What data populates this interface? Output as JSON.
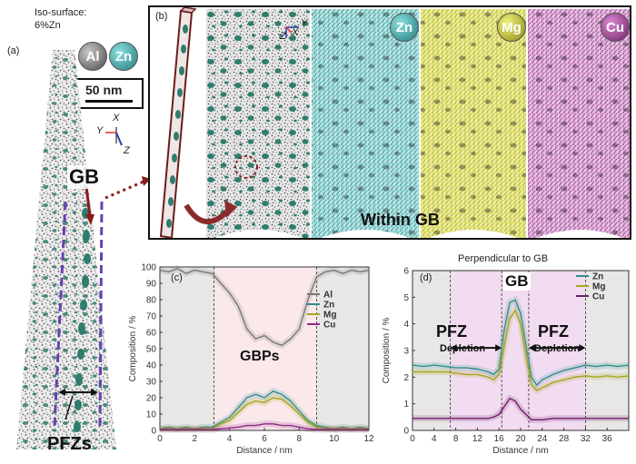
{
  "panel_a": {
    "label": "(a)",
    "iso_line1": "Iso-surface:",
    "iso_line2": "6%Zn",
    "element_badges": [
      "Al",
      "Zn"
    ],
    "scale_bar": "50 nm",
    "axes": {
      "x": "X",
      "y": "Y",
      "z": "Z"
    },
    "gb_label": "GB",
    "pfz_label": "PFZs"
  },
  "panel_b": {
    "label": "(b)",
    "axes": {
      "x": "X",
      "y": "Y",
      "z": "Z"
    },
    "element_badges": [
      "Zn",
      "Mg",
      "Cu"
    ],
    "within_label": "Within GB",
    "colors": {
      "atoms_all": "#404040",
      "zn": "#3aa6a6",
      "mg": "#b9b92a",
      "cu": "#a23b95",
      "precipitate": "#2e7d6e"
    }
  },
  "panel_c": {
    "label": "(c)",
    "annotation": "GBPs"
  },
  "panel_d": {
    "label": "(d)",
    "title": "Perpendicular to GB",
    "gb_label": "GB",
    "pfz_label": "PFZ",
    "depletion_label": "Depletion"
  },
  "chart_data": [
    {
      "type": "line",
      "title": "",
      "xlabel": "Distance / nm",
      "ylabel": "Composition / %",
      "xlim": [
        0,
        12
      ],
      "ylim": [
        0,
        100
      ],
      "xticks": [
        0,
        2,
        4,
        6,
        8,
        10,
        12
      ],
      "yticks": [
        0,
        10,
        20,
        30,
        40,
        50,
        60,
        70,
        80,
        90,
        100
      ],
      "legend_position": "right",
      "shaded_regions": [
        [
          0,
          3.1
        ],
        [
          9.0,
          12
        ]
      ],
      "gb_region": [
        3.1,
        9.0
      ],
      "x": [
        0,
        0.5,
        1,
        1.5,
        2,
        2.5,
        3,
        3.5,
        4,
        4.5,
        5,
        5.5,
        6,
        6.5,
        7,
        7.5,
        8,
        8.5,
        9,
        9.5,
        10,
        10.5,
        11,
        11.5,
        12
      ],
      "series": [
        {
          "name": "Al",
          "color": "#777777",
          "values": [
            98,
            97,
            99,
            96,
            98,
            97,
            96,
            90,
            84,
            76,
            62,
            56,
            58,
            54,
            52,
            56,
            62,
            80,
            94,
            97,
            98,
            96,
            98,
            97,
            98
          ]
        },
        {
          "name": "Zn",
          "color": "#2f8f8f",
          "values": [
            1,
            2,
            1,
            2,
            1,
            2,
            2,
            5,
            8,
            14,
            20,
            22,
            20,
            24,
            22,
            18,
            12,
            6,
            3,
            2,
            1,
            2,
            1,
            2,
            1
          ]
        },
        {
          "name": "Mg",
          "color": "#a5a51e",
          "values": [
            1,
            1,
            1,
            1,
            1,
            1,
            1,
            4,
            6,
            11,
            16,
            18,
            17,
            20,
            19,
            15,
            10,
            5,
            2,
            1,
            1,
            1,
            1,
            1,
            1
          ]
        },
        {
          "name": "Cu",
          "color": "#8e2a86",
          "values": [
            0.5,
            0.5,
            0.5,
            0.5,
            0.5,
            0.5,
            0.5,
            1,
            1.5,
            2,
            3,
            3,
            4,
            4,
            3,
            3,
            2,
            1,
            0.5,
            0.5,
            0.5,
            0.5,
            0.5,
            0.5,
            0.5
          ]
        }
      ]
    },
    {
      "type": "line",
      "title": "Perpendicular to GB",
      "xlabel": "Distance / nm",
      "ylabel": "Composition / %",
      "xlim": [
        0,
        40
      ],
      "ylim": [
        0,
        6
      ],
      "xticks": [
        0,
        4,
        8,
        12,
        16,
        20,
        24,
        28,
        32,
        36
      ],
      "yticks": [
        0,
        1,
        2,
        3,
        4,
        5,
        6
      ],
      "legend_position": "top-right",
      "shaded_regions": [
        [
          0,
          7
        ],
        [
          32,
          40
        ]
      ],
      "pfz_regions": [
        [
          7,
          16.5
        ],
        [
          21.5,
          32
        ]
      ],
      "gb_region": [
        16.5,
        21.5
      ],
      "x": [
        0,
        2,
        4,
        6,
        8,
        10,
        12,
        14,
        15,
        16,
        17,
        18,
        19,
        20,
        21,
        22,
        23,
        24,
        26,
        28,
        30,
        32,
        34,
        36,
        38,
        40
      ],
      "series": [
        {
          "name": "Zn",
          "color": "#2f8f8f",
          "values": [
            2.45,
            2.4,
            2.45,
            2.4,
            2.35,
            2.35,
            2.3,
            2.2,
            2.1,
            2.3,
            3.8,
            4.8,
            4.9,
            4.4,
            3.2,
            2.0,
            1.7,
            1.9,
            2.1,
            2.25,
            2.35,
            2.45,
            2.4,
            2.45,
            2.4,
            2.45
          ]
        },
        {
          "name": "Mg",
          "color": "#a5a51e",
          "values": [
            2.2,
            2.2,
            2.2,
            2.2,
            2.15,
            2.1,
            2.1,
            2.0,
            1.9,
            2.1,
            3.2,
            4.2,
            4.5,
            4.0,
            2.8,
            1.7,
            1.5,
            1.6,
            1.8,
            1.9,
            2.0,
            2.05,
            2.0,
            2.05,
            2.0,
            2.05
          ]
        },
        {
          "name": "Cu",
          "color": "#6f1f6a",
          "values": [
            0.45,
            0.45,
            0.45,
            0.45,
            0.45,
            0.45,
            0.45,
            0.45,
            0.5,
            0.6,
            0.9,
            1.2,
            1.1,
            0.8,
            0.6,
            0.4,
            0.4,
            0.4,
            0.45,
            0.45,
            0.45,
            0.45,
            0.45,
            0.45,
            0.45,
            0.45
          ]
        }
      ]
    }
  ]
}
